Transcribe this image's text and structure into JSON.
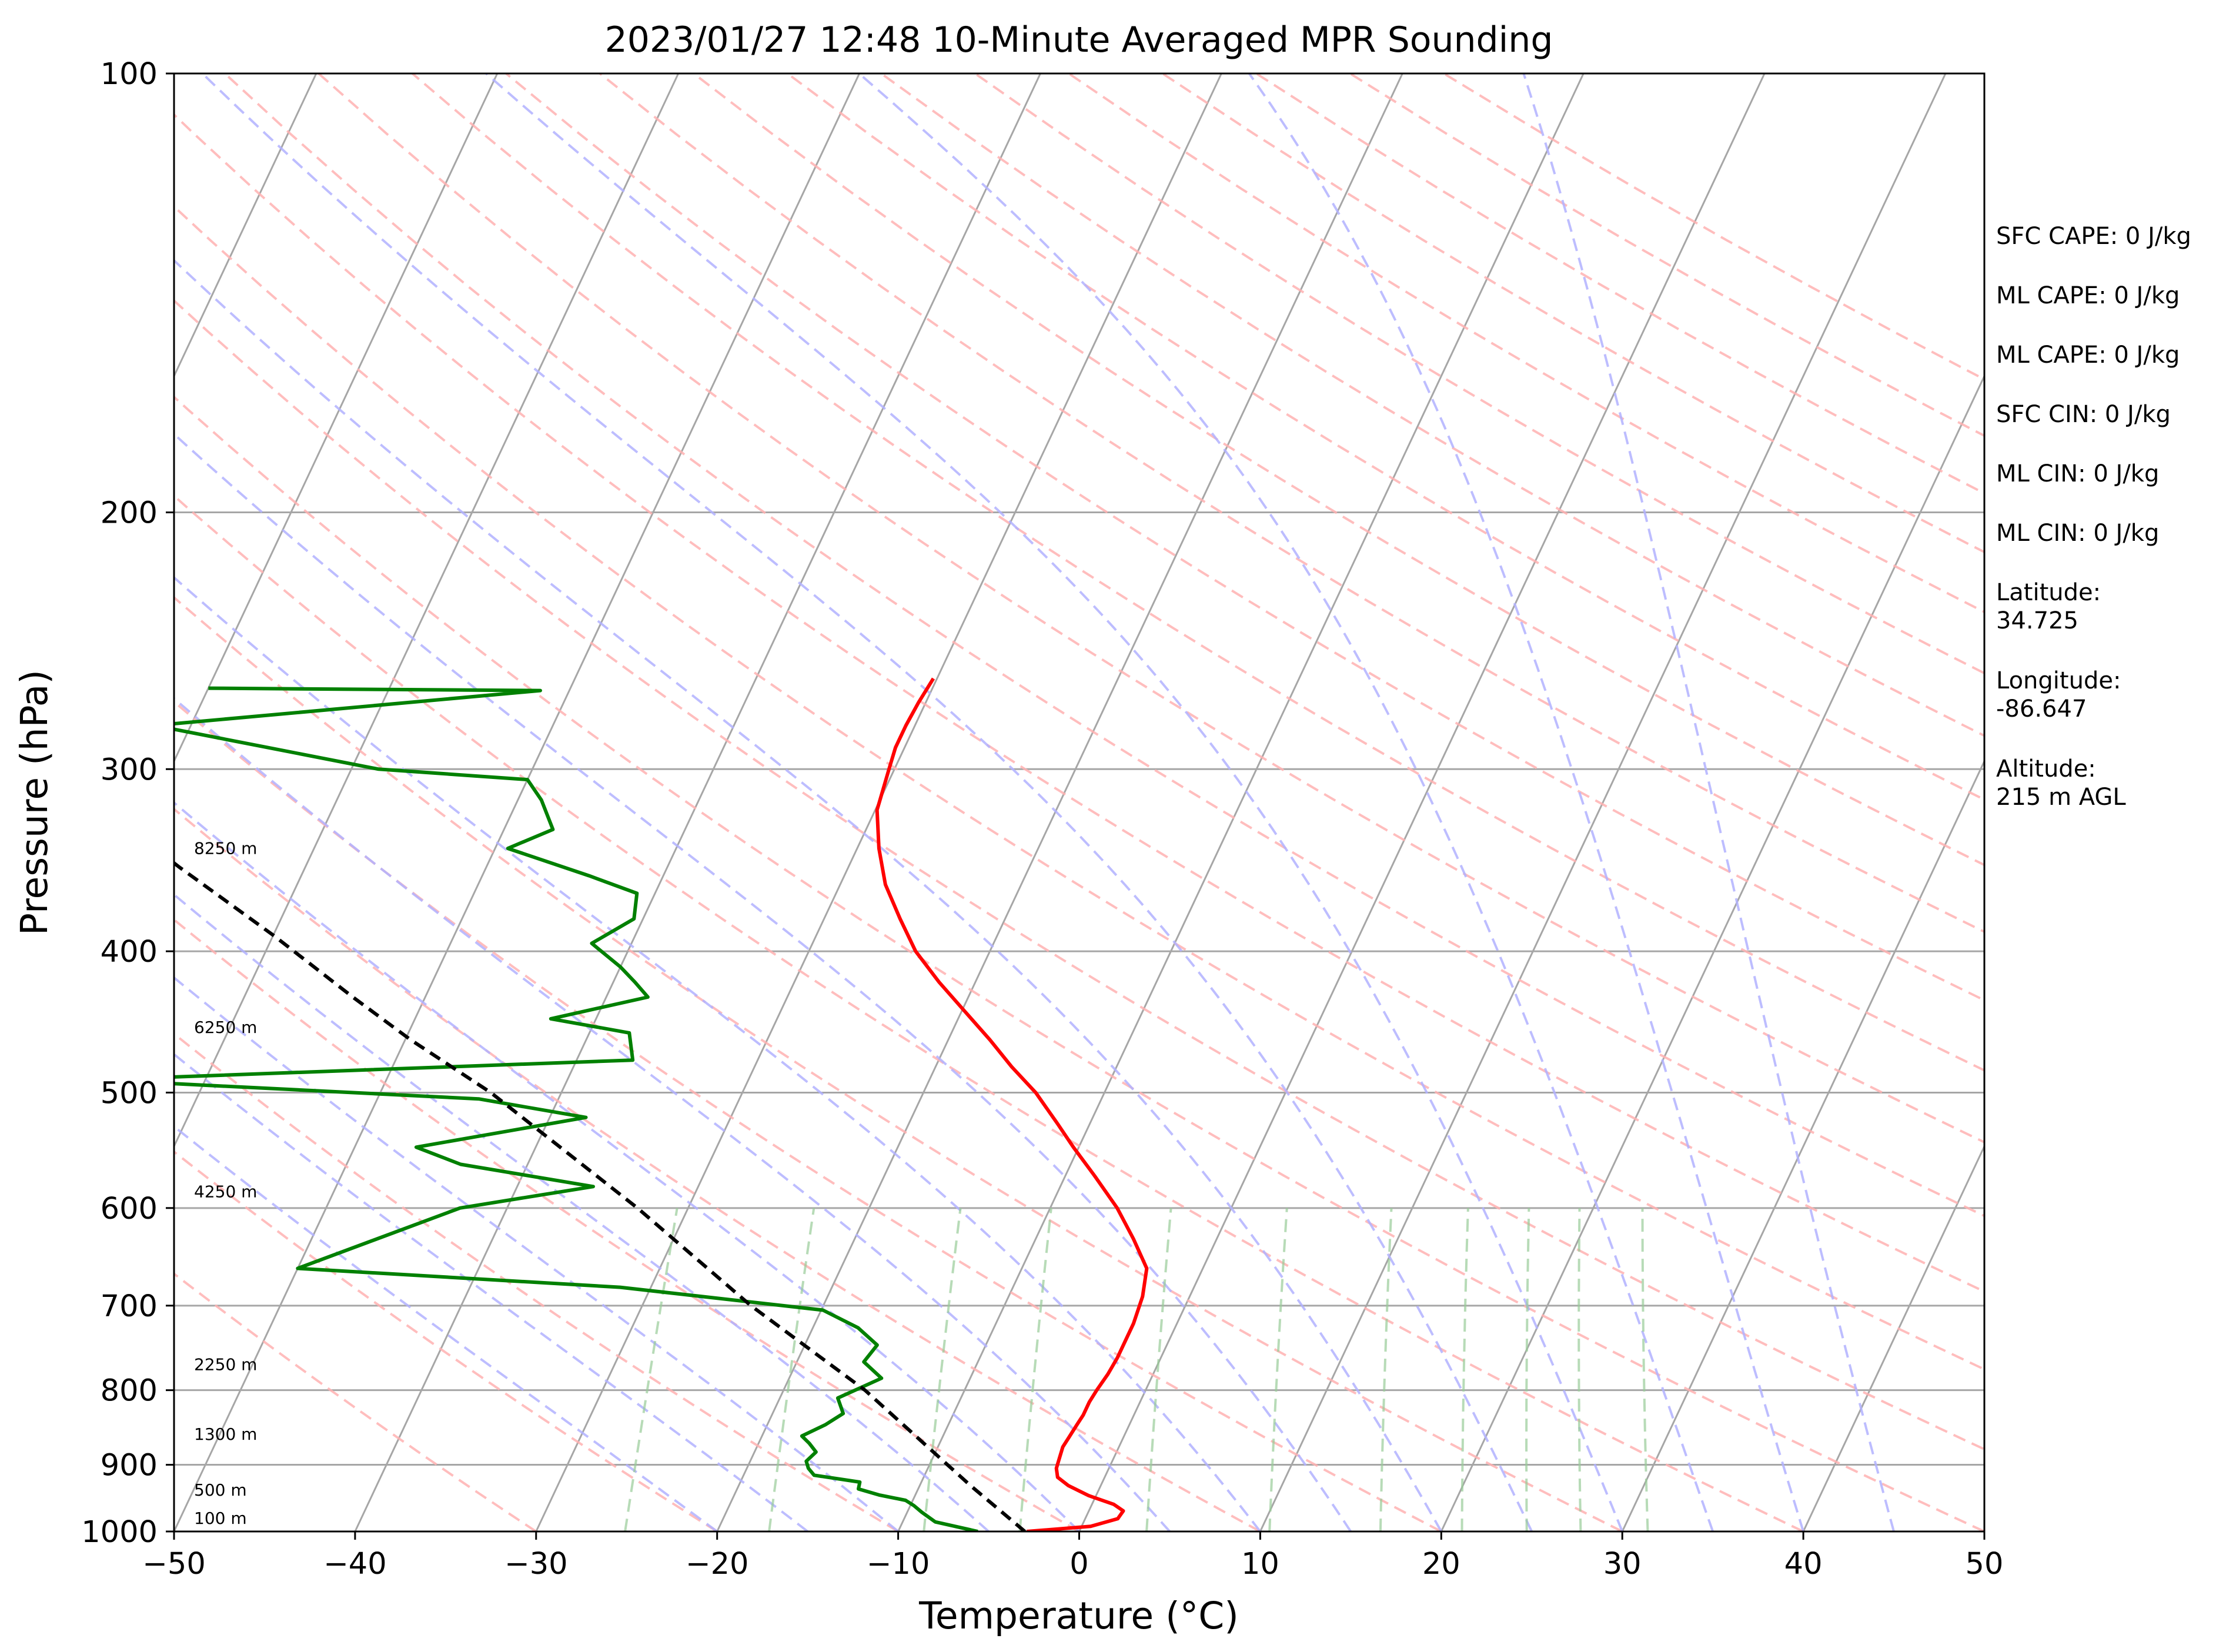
{
  "chart_data": {
    "type": "line",
    "title": "2023/01/27 12:48 10-Minute Averaged MPR Sounding",
    "xlabel": "Temperature (°C)",
    "ylabel": "Pressure (hPa)",
    "xlim": [
      -50,
      50
    ],
    "ylim": [
      1000,
      100
    ],
    "y_scale": "log",
    "skew": "skew-T",
    "grid": true,
    "x_ticks": [
      "−50",
      "−40",
      "−30",
      "−20",
      "−10",
      "0",
      "10",
      "20",
      "30",
      "40",
      "50"
    ],
    "y_ticks": [
      "100",
      "200",
      "300",
      "400",
      "500",
      "600",
      "700",
      "800",
      "900",
      "1000"
    ],
    "series": [
      {
        "color": "#ff0000",
        "points": [
          [
            -2.9,
            1000
          ],
          [
            0.5,
            992
          ],
          [
            1.8,
            980
          ],
          [
            1.9,
            968
          ],
          [
            1.2,
            958
          ],
          [
            -0.4,
            945
          ],
          [
            -1.8,
            930
          ],
          [
            -2.6,
            918
          ],
          [
            -2.9,
            905
          ],
          [
            -3.0,
            890
          ],
          [
            -3.1,
            875
          ],
          [
            -3.0,
            860
          ],
          [
            -2.9,
            845
          ],
          [
            -2.8,
            832
          ],
          [
            -2.8,
            815
          ],
          [
            -2.7,
            800
          ],
          [
            -2.5,
            780
          ],
          [
            -2.4,
            760
          ],
          [
            -2.4,
            740
          ],
          [
            -2.4,
            720
          ],
          [
            -2.6,
            690
          ],
          [
            -3.1,
            660
          ],
          [
            -4.6,
            630
          ],
          [
            -6.3,
            600
          ],
          [
            -8.4,
            570
          ],
          [
            -10.3,
            545
          ],
          [
            -11.8,
            525
          ],
          [
            -13.8,
            500
          ],
          [
            -15.8,
            480
          ],
          [
            -17.7,
            460
          ],
          [
            -19.8,
            440
          ],
          [
            -22.0,
            420
          ],
          [
            -24.1,
            400
          ],
          [
            -25.8,
            380
          ],
          [
            -27.5,
            360
          ],
          [
            -28.8,
            340
          ],
          [
            -29.9,
            320
          ],
          [
            -30.3,
            300
          ],
          [
            -30.5,
            290
          ],
          [
            -30.5,
            280
          ],
          [
            -30.4,
            270
          ],
          [
            -30.2,
            260
          ]
        ]
      },
      {
        "color": "#008000",
        "points": [
          [
            -5.6,
            1000
          ],
          [
            -8.2,
            985
          ],
          [
            -9.2,
            970
          ],
          [
            -9.8,
            960
          ],
          [
            -10.4,
            952
          ],
          [
            -12.0,
            944
          ],
          [
            -13.3,
            935
          ],
          [
            -13.4,
            925
          ],
          [
            -16.1,
            915
          ],
          [
            -16.6,
            905
          ],
          [
            -16.9,
            895
          ],
          [
            -16.6,
            882
          ],
          [
            -17.2,
            870
          ],
          [
            -17.8,
            860
          ],
          [
            -16.8,
            845
          ],
          [
            -16.1,
            830
          ],
          [
            -16.8,
            810
          ],
          [
            -14.9,
            785
          ],
          [
            -16.3,
            765
          ],
          [
            -16.0,
            745
          ],
          [
            -17.5,
            725
          ],
          [
            -19.9,
            705
          ],
          [
            -31.7,
            680
          ],
          [
            -50.0,
            660
          ],
          [
            -42.6,
            600
          ],
          [
            -35.8,
            580
          ],
          [
            -43.7,
            560
          ],
          [
            -46.6,
            545
          ],
          [
            -38.0,
            520
          ],
          [
            -44.4,
            505
          ],
          [
            -66.0,
            490
          ],
          [
            -36.9,
            475
          ],
          [
            -37.8,
            455
          ],
          [
            -42.5,
            445
          ],
          [
            -37.7,
            430
          ],
          [
            -38.8,
            420
          ],
          [
            -40.0,
            410
          ],
          [
            -42.2,
            395
          ],
          [
            -40.5,
            380
          ],
          [
            -41.0,
            365
          ],
          [
            -44.1,
            355
          ],
          [
            -49.3,
            340
          ],
          [
            -47.3,
            330
          ],
          [
            -48.7,
            315
          ],
          [
            -50.0,
            305
          ],
          [
            -58.5,
            300
          ],
          [
            -72.0,
            280
          ],
          [
            -51.6,
            265
          ],
          [
            -70.0,
            264
          ]
        ]
      },
      {
        "color": "#000000",
        "style": "dashed",
        "points": [
          [
            -3.0,
            1000
          ],
          [
            -7.2,
            930
          ],
          [
            -15.5,
            800
          ],
          [
            -24.0,
            700
          ],
          [
            -32.8,
            600
          ],
          [
            -43.9,
            500
          ],
          [
            -49.7,
            460
          ],
          [
            -54.0,
            430
          ],
          [
            -60.0,
            390
          ],
          [
            -67.0,
            350
          ],
          [
            -72.5,
            320
          ],
          [
            -74.0,
            310
          ]
        ]
      }
    ],
    "height_labels": [
      {
        "text": "100 m",
        "p": 988
      },
      {
        "text": "500 m",
        "p": 945
      },
      {
        "text": "1300 m",
        "p": 865
      },
      {
        "text": "2250 m",
        "p": 775
      },
      {
        "text": "4250 m",
        "p": 590
      },
      {
        "text": "6250 m",
        "p": 455
      },
      {
        "text": "8250 m",
        "p": 343
      }
    ],
    "side_panel": [
      {
        "lines": [
          "SFC CAPE: 0 J/kg"
        ]
      },
      {
        "lines": [
          "ML CAPE: 0 J/kg"
        ]
      },
      {
        "lines": [
          "ML CAPE: 0 J/kg"
        ]
      },
      {
        "lines": [
          "SFC CIN: 0 J/kg"
        ]
      },
      {
        "lines": [
          "ML CIN: 0 J/kg"
        ]
      },
      {
        "lines": [
          "ML CIN: 0 J/kg"
        ]
      },
      {
        "lines": [
          "Latitude:",
          "34.725"
        ]
      },
      {
        "lines": [
          "Longitude:",
          "-86.647"
        ]
      },
      {
        "lines": [
          "Altitude:",
          "215 m AGL"
        ]
      }
    ],
    "colors": {
      "isotherm": "#a6a6a6",
      "isobar": "#a6a6a6",
      "dry_adiabat": "#ffb2b2",
      "moist_adiabat": "#b2b2ff",
      "mixing_ratio": "#99cc99"
    }
  }
}
